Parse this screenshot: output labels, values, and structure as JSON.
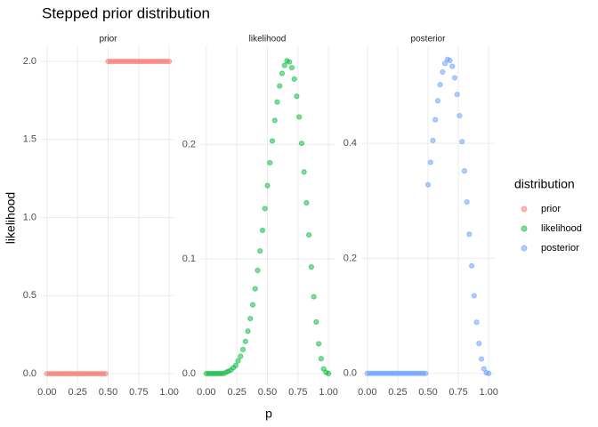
{
  "title": "Stepped prior distribution",
  "x_label": "p",
  "y_label": "likelihood",
  "legend_title": "distribution",
  "chart_data": [
    {
      "type": "scatter",
      "title": "prior",
      "x": [
        0,
        0.02,
        0.04,
        0.06,
        0.08,
        0.1,
        0.12,
        0.14,
        0.16,
        0.18,
        0.2,
        0.22,
        0.24,
        0.26,
        0.28,
        0.3,
        0.32,
        0.34,
        0.36,
        0.38,
        0.4,
        0.42,
        0.44,
        0.46,
        0.48,
        0.5,
        0.52,
        0.54,
        0.56,
        0.58,
        0.6,
        0.62,
        0.64,
        0.66,
        0.68,
        0.7,
        0.72,
        0.74,
        0.76,
        0.78,
        0.8,
        0.82,
        0.84,
        0.86,
        0.88,
        0.9,
        0.92,
        0.94,
        0.96,
        0.98,
        1
      ],
      "series": [
        {
          "name": "prior",
          "color": "#F8766D",
          "values": [
            0,
            0,
            0,
            0,
            0,
            0,
            0,
            0,
            0,
            0,
            0,
            0,
            0,
            0,
            0,
            0,
            0,
            0,
            0,
            0,
            0,
            0,
            0,
            0,
            0,
            2,
            2,
            2,
            2,
            2,
            2,
            2,
            2,
            2,
            2,
            2,
            2,
            2,
            2,
            2,
            2,
            2,
            2,
            2,
            2,
            2,
            2,
            2,
            2,
            2,
            2
          ]
        }
      ],
      "xlim": [
        -0.05,
        1.05
      ],
      "xticks": [
        {
          "value": 0,
          "label": "0.00"
        },
        {
          "value": 0.25,
          "label": "0.25"
        },
        {
          "value": 0.5,
          "label": "0.50"
        },
        {
          "value": 0.75,
          "label": "0.75"
        },
        {
          "value": 1,
          "label": "1.00"
        }
      ],
      "ylim": [
        -0.068,
        2.097
      ],
      "yticks": [
        {
          "value": 0,
          "label": "0.0"
        },
        0.5,
        {
          "value": 1,
          "label": "1.0"
        },
        1.5,
        {
          "value": 2,
          "label": "2.0"
        }
      ],
      "grid": true
    },
    {
      "type": "scatter",
      "title": "likelihood",
      "x": [
        0,
        0.02,
        0.04,
        0.06,
        0.08,
        0.1,
        0.12,
        0.14,
        0.16,
        0.18,
        0.2,
        0.22,
        0.24,
        0.26,
        0.28,
        0.3,
        0.32,
        0.34,
        0.36,
        0.38,
        0.4,
        0.42,
        0.44,
        0.46,
        0.48,
        0.5,
        0.52,
        0.54,
        0.56,
        0.58,
        0.6,
        0.62,
        0.64,
        0.66,
        0.68,
        0.7,
        0.72,
        0.74,
        0.76,
        0.78,
        0.8,
        0.82,
        0.84,
        0.86,
        0.88,
        0.9,
        0.92,
        0.94,
        0.96,
        0.98,
        1
      ],
      "series": [
        {
          "name": "likelihood",
          "color": "#00BA38",
          "values": [
            0,
            0,
            0,
            0,
            0,
            0,
            0,
            0,
            0.001,
            0.002,
            0.003,
            0.005,
            0.007,
            0.011,
            0.015,
            0.021,
            0.028,
            0.037,
            0.048,
            0.06,
            0.074,
            0.09,
            0.107,
            0.125,
            0.144,
            0.164,
            0.184,
            0.203,
            0.221,
            0.237,
            0.251,
            0.262,
            0.269,
            0.273,
            0.272,
            0.267,
            0.257,
            0.242,
            0.224,
            0.201,
            0.176,
            0.149,
            0.121,
            0.093,
            0.067,
            0.045,
            0.026,
            0.013,
            0.004,
            0.001,
            0
          ]
        }
      ],
      "xlim": [
        -0.05,
        1.05
      ],
      "xticks": [
        {
          "value": 0,
          "label": "0.00"
        },
        {
          "value": 0.25,
          "label": "0.25"
        },
        {
          "value": 0.5,
          "label": "0.50"
        },
        {
          "value": 0.75,
          "label": "0.75"
        },
        {
          "value": 1,
          "label": "1.00"
        }
      ],
      "ylim": [
        -0.0094,
        0.2857
      ],
      "yticks": [
        {
          "value": 0,
          "label": "0.0"
        },
        0.1,
        0.2
      ],
      "grid": true
    },
    {
      "type": "scatter",
      "title": "posterior",
      "x": [
        0,
        0.02,
        0.04,
        0.06,
        0.08,
        0.1,
        0.12,
        0.14,
        0.16,
        0.18,
        0.2,
        0.22,
        0.24,
        0.26,
        0.28,
        0.3,
        0.32,
        0.34,
        0.36,
        0.38,
        0.4,
        0.42,
        0.44,
        0.46,
        0.48,
        0.5,
        0.52,
        0.54,
        0.56,
        0.58,
        0.6,
        0.62,
        0.64,
        0.66,
        0.68,
        0.7,
        0.72,
        0.74,
        0.76,
        0.78,
        0.8,
        0.82,
        0.84,
        0.86,
        0.88,
        0.9,
        0.92,
        0.94,
        0.96,
        0.98,
        1
      ],
      "series": [
        {
          "name": "posterior",
          "color": "#619CFF",
          "values": [
            0,
            0,
            0,
            0,
            0,
            0,
            0,
            0,
            0,
            0,
            0,
            0,
            0,
            0,
            0,
            0,
            0,
            0,
            0,
            0,
            0,
            0,
            0,
            0,
            0,
            0.328,
            0.367,
            0.405,
            0.441,
            0.474,
            0.502,
            0.524,
            0.539,
            0.546,
            0.544,
            0.534,
            0.514,
            0.485,
            0.448,
            0.403,
            0.352,
            0.298,
            0.242,
            0.187,
            0.135,
            0.089,
            0.052,
            0.025,
            0.008,
            0.001,
            0
          ]
        }
      ],
      "xlim": [
        -0.05,
        1.05
      ],
      "xticks": [
        {
          "value": 0,
          "label": "0.00"
        },
        {
          "value": 0.25,
          "label": "0.25"
        },
        {
          "value": 0.5,
          "label": "0.50"
        },
        {
          "value": 0.75,
          "label": "0.75"
        },
        {
          "value": 1,
          "label": "1.00"
        }
      ],
      "ylim": [
        -0.019,
        0.5688
      ],
      "yticks": [
        {
          "value": 0,
          "label": "0.0"
        },
        0.2,
        0.4
      ],
      "grid": true
    }
  ]
}
